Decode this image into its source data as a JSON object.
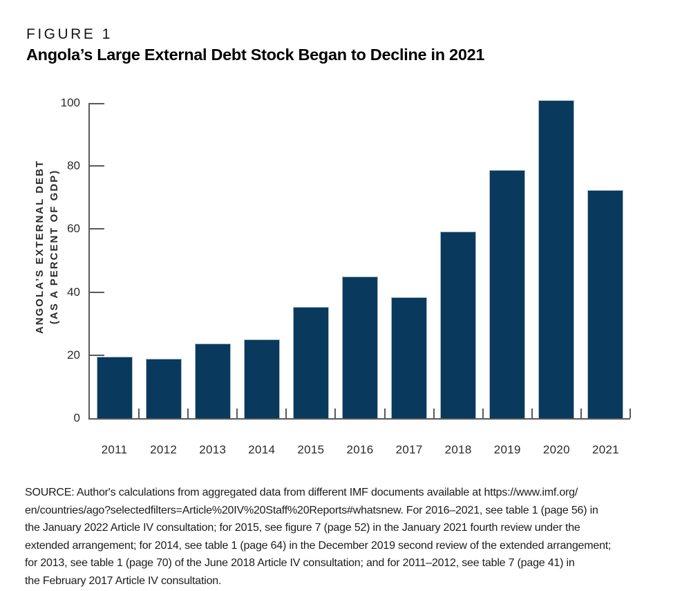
{
  "header": {
    "figure_label": "FIGURE 1",
    "title": "Angola’s Large External Debt Stock Began to Decline in 2021"
  },
  "chart_data": {
    "type": "bar",
    "title": "Angola’s Large External Debt Stock Began to Decline in 2021",
    "categories": [
      "2011",
      "2012",
      "2013",
      "2014",
      "2015",
      "2016",
      "2017",
      "2018",
      "2019",
      "2020",
      "2021"
    ],
    "values": [
      19.6,
      18.9,
      23.6,
      25.1,
      35.3,
      45.0,
      38.3,
      59.2,
      78.7,
      100.9,
      72.4
    ],
    "xlabel": "",
    "ylabel": "ANGOLA’S EXTERNAL DEBT (AS A PERCENT OF GDP)",
    "ylabel_lines": [
      "ANGOLA’S EXTERNAL DEBT",
      "(AS A PERCENT OF GDP)"
    ],
    "yticks": [
      0,
      20,
      40,
      60,
      80,
      100
    ],
    "ylim": [
      0,
      100
    ],
    "grid": false,
    "legend": null,
    "bar_color": "#093a5e",
    "bar_edge_color": "#a9bcca",
    "axis_color": "#58595b"
  },
  "source": {
    "text": "SOURCE: Author's calculations from aggregated data from different IMF documents available at https://www.imf.org/\nen/countries/ago?selectedfilters=Article%20IV%20Staff%20Reports#whatsnew. For 2016–2021, see table 1 (page 56) in\nthe January 2022 Article IV consultation; for 2015, see figure 7 (page 52) in the January 2021 fourth review under the\nextended arrangement; for 2014, see table 1 (page 64) in the December 2019 second review of the extended arrangement;\nfor 2013, see table 1 (page 70) of the June 2018 Article IV consultation; and for 2011–2012, see table 7 (page 41) in\nthe February 2017 Article IV consultation."
  }
}
